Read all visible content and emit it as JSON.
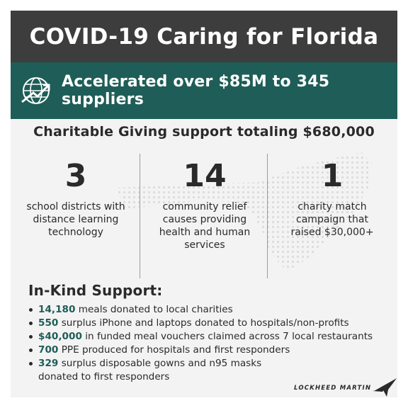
{
  "header": {
    "title": "COVID-19 Caring for Florida"
  },
  "banner": {
    "icon": "globe-arrow-icon",
    "text": "Accelerated over $85M to 345 suppliers"
  },
  "subtitle": "Charitable Giving support totaling $680,000",
  "stats": [
    {
      "number": "3",
      "description": "school districts with distance learning technology"
    },
    {
      "number": "14",
      "description": "community relief causes providing health and human services"
    },
    {
      "number": "1",
      "description": "charity match campaign that raised $30,000+"
    }
  ],
  "inkind": {
    "title": "In-Kind Support:",
    "items": [
      {
        "highlight": "14,180",
        "text": " meals donated to local charities"
      },
      {
        "highlight": "550",
        "text": " surplus iPhone and laptops donated to hospitals/non-profits"
      },
      {
        "highlight": "$40,000",
        "text": " in funded meal vouchers claimed across 7 local restaurants"
      },
      {
        "highlight": "700",
        "text": " PPE produced for hospitals and first responders"
      },
      {
        "highlight": "329",
        "text": " surplus disposable gowns and n95 masks",
        "continuation": "donated to first responders"
      }
    ]
  },
  "brand": {
    "name": "LOCKHEED MARTIN",
    "logo": "star-logo-icon"
  },
  "colors": {
    "header_bg": "#3d3d3d",
    "banner_bg": "#1e5d58",
    "accent": "#1e5d58",
    "card_bg": "#f3f3f3"
  }
}
